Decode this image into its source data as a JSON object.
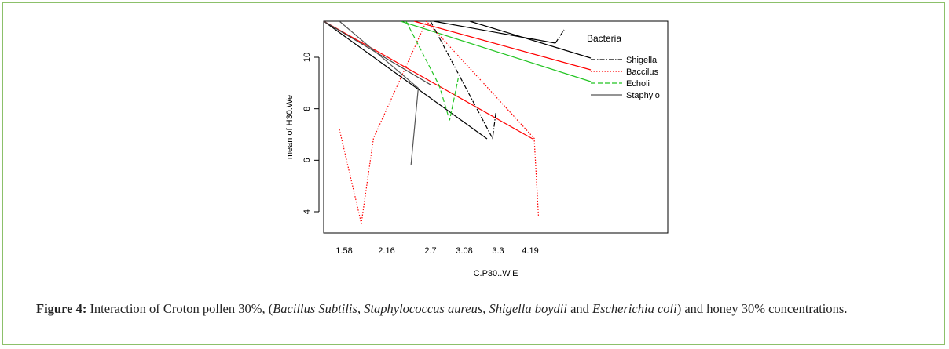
{
  "chart_data": {
    "type": "line",
    "title": "",
    "xlabel": "C.P30..W.E",
    "ylabel": "mean of H30.We",
    "categories": [
      "1.58",
      "2.16",
      "2.7",
      "3.08",
      "3.3",
      "4.19"
    ],
    "y_ticks": [
      4,
      6,
      8,
      10
    ],
    "ylim": [
      3.2,
      11.4
    ],
    "legend": {
      "title": "Bacteria",
      "placement": "top-right",
      "entries": [
        {
          "name": "Shigella",
          "color": "#000000",
          "dash": "dash-dot"
        },
        {
          "name": "Baccilus",
          "color": "#ff0000",
          "dash": "dotted"
        },
        {
          "name": "Echoli",
          "color": "#22c422",
          "dash": "dashed"
        },
        {
          "name": "Staphylo",
          "color": "#555555",
          "dash": "solid"
        }
      ]
    },
    "series": [
      {
        "name": "Shigella",
        "color": "#000000",
        "dash": "dash-dot",
        "points": [
          [
            2.7,
            11.4
          ],
          [
            3.3,
            6.85
          ],
          [
            3.37,
            7.85
          ]
        ]
      },
      {
        "name": "Baccilus",
        "color": "#ff0000",
        "dash": "dotted",
        "points": [
          [
            1.58,
            7.2
          ],
          [
            1.85,
            3.55
          ],
          [
            2.0,
            6.85
          ],
          [
            2.65,
            11.4
          ],
          [
            4.19,
            6.85
          ],
          [
            4.28,
            3.85
          ]
        ]
      },
      {
        "name": "Echoli",
        "color": "#22c422",
        "dash": "dashed",
        "points": [
          [
            2.4,
            11.4
          ],
          [
            2.8,
            8.9
          ],
          [
            2.92,
            7.55
          ],
          [
            3.02,
            9.2
          ]
        ]
      },
      {
        "name": "Staphylo",
        "color": "#555555",
        "dash": "solid",
        "points": [
          [
            1.58,
            11.4
          ],
          [
            2.55,
            8.8
          ],
          [
            2.46,
            5.8
          ]
        ]
      }
    ]
  },
  "caption": {
    "label": "Figure 4:",
    "parts": [
      {
        "text": " Interaction of Croton pollen 30%, (",
        "italic": false
      },
      {
        "text": "Bacillus Subtilis",
        "italic": true
      },
      {
        "text": ", ",
        "italic": false
      },
      {
        "text": "Staphylococcus aureus",
        "italic": true
      },
      {
        "text": ", ",
        "italic": false
      },
      {
        "text": "Shigella boydii",
        "italic": true
      },
      {
        "text": " and ",
        "italic": false
      },
      {
        "text": "Escherichia coli",
        "italic": true
      },
      {
        "text": ") and honey 30% concentrations.",
        "italic": false
      }
    ]
  },
  "colors": {
    "border": "#8cc06a"
  }
}
